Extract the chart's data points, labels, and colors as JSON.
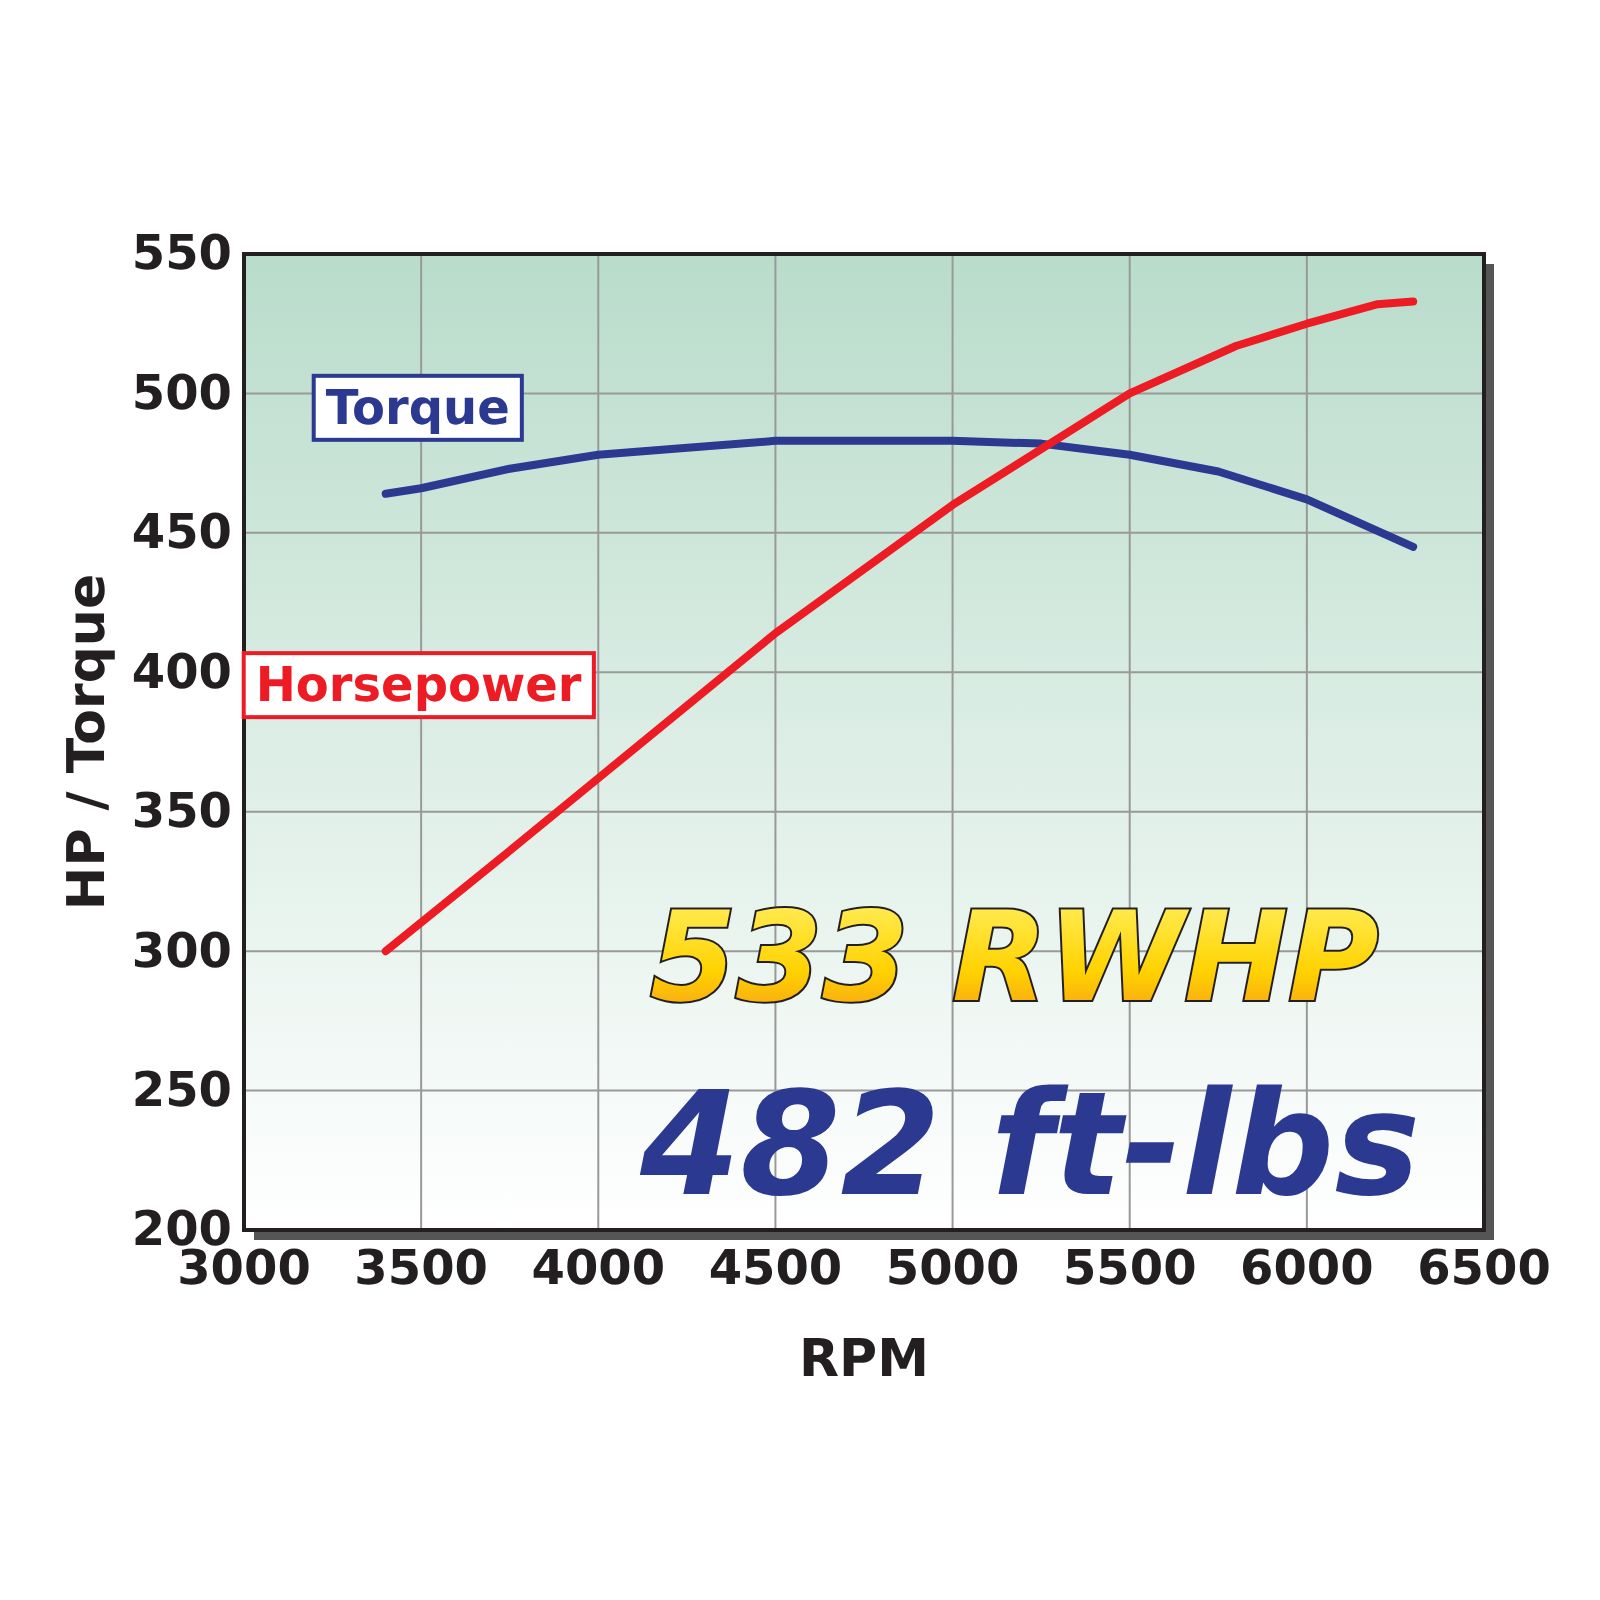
{
  "chart_data": {
    "type": "line",
    "xlabel": "RPM",
    "ylabel": "HP / Torque",
    "xlim": [
      3000,
      6500
    ],
    "xticks": [
      3000,
      3500,
      4000,
      4500,
      5000,
      5500,
      6000,
      6500
    ],
    "ylim": [
      200,
      550
    ],
    "yticks": [
      200,
      250,
      300,
      350,
      400,
      450,
      500,
      550
    ],
    "grid": true,
    "marker": "none",
    "line_style": "solid",
    "series": [
      {
        "name": "Torque",
        "color": "#2b3990",
        "x": [
          3400,
          3500,
          3750,
          4000,
          4500,
          5000,
          5250,
          5500,
          5750,
          6000,
          6300
        ],
        "values": [
          464,
          466,
          473,
          478,
          483,
          483,
          482,
          478,
          472,
          462,
          445
        ]
      },
      {
        "name": "Horsepower",
        "color": "#ed1c24",
        "x": [
          3400,
          3750,
          4000,
          4500,
          5000,
          5500,
          5800,
          6000,
          6200,
          6300
        ],
        "values": [
          300,
          336,
          362,
          414,
          460,
          500,
          517,
          525,
          532,
          533
        ]
      }
    ],
    "annotations": [
      "533 RWHP",
      "482 ft-lbs"
    ]
  }
}
